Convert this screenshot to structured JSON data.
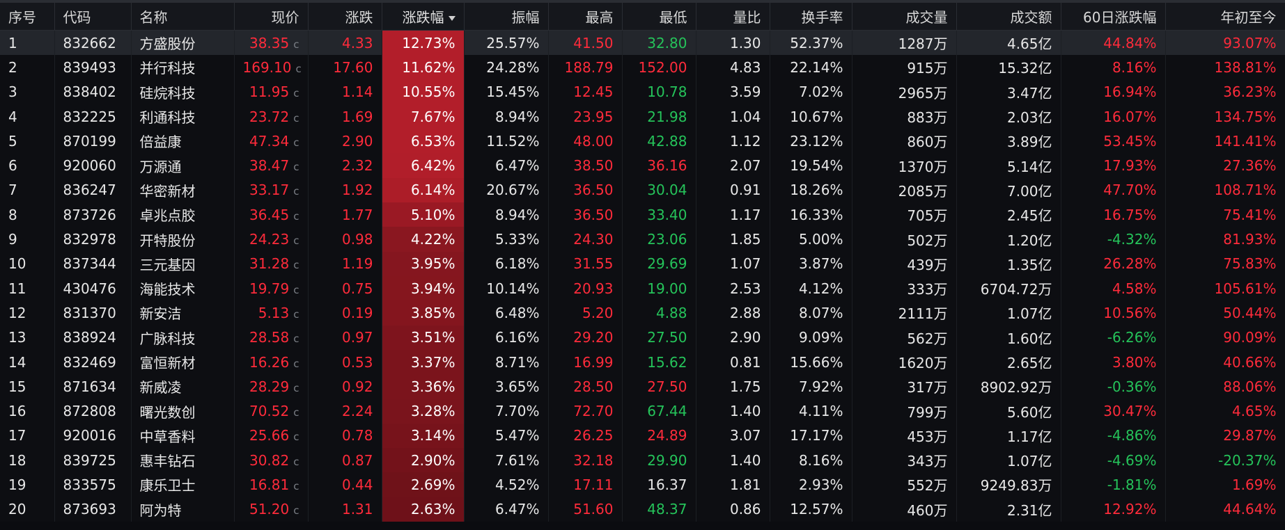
{
  "columns": [
    "序号",
    "代码",
    "名称",
    "现价",
    "涨跌",
    "涨跌幅",
    "振幅",
    "最高",
    "最低",
    "量比",
    "换手率",
    "成交量",
    "成交额",
    "60日涨跌幅",
    "年初至今"
  ],
  "sorted_column": "涨跌幅",
  "price_flag": "c",
  "colors": {
    "up": "#ff2b3b",
    "down": "#25c35a",
    "strong_cell": "#b31e2a",
    "weak_cell": "#6e1219"
  },
  "rows": [
    {
      "idx": "1",
      "code": "832662",
      "name": "方盛股份",
      "price": "38.35",
      "change": "4.33",
      "pct": "12.73%",
      "amp": "25.57%",
      "high": "41.50",
      "low": "32.80",
      "vr": "1.30",
      "turn": "52.37%",
      "vol": "1287万",
      "amt": "4.65亿",
      "d60": "44.84%",
      "ytd": "93.07%",
      "pct_value": 12.73,
      "price_dir": "up",
      "change_dir": "up",
      "high_dir": "up",
      "low_dir": "down",
      "d60_dir": "up",
      "ytd_dir": "up"
    },
    {
      "idx": "2",
      "code": "839493",
      "name": "并行科技",
      "price": "169.10",
      "change": "17.60",
      "pct": "11.62%",
      "amp": "24.28%",
      "high": "188.79",
      "low": "152.00",
      "vr": "4.83",
      "turn": "22.14%",
      "vol": "915万",
      "amt": "15.32亿",
      "d60": "8.16%",
      "ytd": "138.81%",
      "pct_value": 11.62,
      "price_dir": "up",
      "change_dir": "up",
      "high_dir": "up",
      "low_dir": "up",
      "d60_dir": "up",
      "ytd_dir": "up"
    },
    {
      "idx": "3",
      "code": "838402",
      "name": "硅烷科技",
      "price": "11.95",
      "change": "1.14",
      "pct": "10.55%",
      "amp": "15.45%",
      "high": "12.45",
      "low": "10.78",
      "vr": "3.59",
      "turn": "7.02%",
      "vol": "2965万",
      "amt": "3.47亿",
      "d60": "16.94%",
      "ytd": "36.23%",
      "pct_value": 10.55,
      "price_dir": "up",
      "change_dir": "up",
      "high_dir": "up",
      "low_dir": "down",
      "d60_dir": "up",
      "ytd_dir": "up"
    },
    {
      "idx": "4",
      "code": "832225",
      "name": "利通科技",
      "price": "23.72",
      "change": "1.69",
      "pct": "7.67%",
      "amp": "8.94%",
      "high": "23.95",
      "low": "21.98",
      "vr": "1.04",
      "turn": "10.67%",
      "vol": "883万",
      "amt": "2.03亿",
      "d60": "16.07%",
      "ytd": "134.75%",
      "pct_value": 7.67,
      "price_dir": "up",
      "change_dir": "up",
      "high_dir": "up",
      "low_dir": "down",
      "d60_dir": "up",
      "ytd_dir": "up"
    },
    {
      "idx": "5",
      "code": "870199",
      "name": "倍益康",
      "price": "47.34",
      "change": "2.90",
      "pct": "6.53%",
      "amp": "11.52%",
      "high": "48.00",
      "low": "42.88",
      "vr": "1.12",
      "turn": "23.12%",
      "vol": "860万",
      "amt": "3.89亿",
      "d60": "53.45%",
      "ytd": "141.41%",
      "pct_value": 6.53,
      "price_dir": "up",
      "change_dir": "up",
      "high_dir": "up",
      "low_dir": "down",
      "d60_dir": "up",
      "ytd_dir": "up"
    },
    {
      "idx": "6",
      "code": "920060",
      "name": "万源通",
      "price": "38.47",
      "change": "2.32",
      "pct": "6.42%",
      "amp": "6.47%",
      "high": "38.50",
      "low": "36.16",
      "vr": "2.07",
      "turn": "19.54%",
      "vol": "1370万",
      "amt": "5.14亿",
      "d60": "17.93%",
      "ytd": "27.36%",
      "pct_value": 6.42,
      "price_dir": "up",
      "change_dir": "up",
      "high_dir": "up",
      "low_dir": "up",
      "d60_dir": "up",
      "ytd_dir": "up"
    },
    {
      "idx": "7",
      "code": "836247",
      "name": "华密新材",
      "price": "33.17",
      "change": "1.92",
      "pct": "6.14%",
      "amp": "20.67%",
      "high": "36.50",
      "low": "30.04",
      "vr": "0.91",
      "turn": "18.26%",
      "vol": "2085万",
      "amt": "7.00亿",
      "d60": "47.70%",
      "ytd": "108.71%",
      "pct_value": 6.14,
      "price_dir": "up",
      "change_dir": "up",
      "high_dir": "up",
      "low_dir": "down",
      "d60_dir": "up",
      "ytd_dir": "up"
    },
    {
      "idx": "8",
      "code": "873726",
      "name": "卓兆点胶",
      "price": "36.45",
      "change": "1.77",
      "pct": "5.10%",
      "amp": "8.94%",
      "high": "36.50",
      "low": "33.40",
      "vr": "1.17",
      "turn": "16.33%",
      "vol": "705万",
      "amt": "2.45亿",
      "d60": "16.75%",
      "ytd": "75.41%",
      "pct_value": 5.1,
      "price_dir": "up",
      "change_dir": "up",
      "high_dir": "up",
      "low_dir": "down",
      "d60_dir": "up",
      "ytd_dir": "up"
    },
    {
      "idx": "9",
      "code": "832978",
      "name": "开特股份",
      "price": "24.23",
      "change": "0.98",
      "pct": "4.22%",
      "amp": "5.33%",
      "high": "24.30",
      "low": "23.06",
      "vr": "1.85",
      "turn": "5.00%",
      "vol": "502万",
      "amt": "1.20亿",
      "d60": "-4.32%",
      "ytd": "81.93%",
      "pct_value": 4.22,
      "price_dir": "up",
      "change_dir": "up",
      "high_dir": "up",
      "low_dir": "down",
      "d60_dir": "down",
      "ytd_dir": "up"
    },
    {
      "idx": "10",
      "code": "837344",
      "name": "三元基因",
      "price": "31.28",
      "change": "1.19",
      "pct": "3.95%",
      "amp": "6.18%",
      "high": "31.55",
      "low": "29.69",
      "vr": "1.07",
      "turn": "3.87%",
      "vol": "439万",
      "amt": "1.35亿",
      "d60": "26.28%",
      "ytd": "75.83%",
      "pct_value": 3.95,
      "price_dir": "up",
      "change_dir": "up",
      "high_dir": "up",
      "low_dir": "down",
      "d60_dir": "up",
      "ytd_dir": "up"
    },
    {
      "idx": "11",
      "code": "430476",
      "name": "海能技术",
      "price": "19.79",
      "change": "0.75",
      "pct": "3.94%",
      "amp": "10.14%",
      "high": "20.93",
      "low": "19.00",
      "vr": "2.53",
      "turn": "4.12%",
      "vol": "333万",
      "amt": "6704.72万",
      "d60": "4.58%",
      "ytd": "105.61%",
      "pct_value": 3.94,
      "price_dir": "up",
      "change_dir": "up",
      "high_dir": "up",
      "low_dir": "down",
      "d60_dir": "up",
      "ytd_dir": "up"
    },
    {
      "idx": "12",
      "code": "831370",
      "name": "新安洁",
      "price": "5.13",
      "change": "0.19",
      "pct": "3.85%",
      "amp": "6.48%",
      "high": "5.20",
      "low": "4.88",
      "vr": "2.88",
      "turn": "8.07%",
      "vol": "2111万",
      "amt": "1.07亿",
      "d60": "10.56%",
      "ytd": "50.44%",
      "pct_value": 3.85,
      "price_dir": "up",
      "change_dir": "up",
      "high_dir": "up",
      "low_dir": "down",
      "d60_dir": "up",
      "ytd_dir": "up"
    },
    {
      "idx": "13",
      "code": "838924",
      "name": "广脉科技",
      "price": "28.58",
      "change": "0.97",
      "pct": "3.51%",
      "amp": "6.16%",
      "high": "29.20",
      "low": "27.50",
      "vr": "2.90",
      "turn": "9.09%",
      "vol": "562万",
      "amt": "1.60亿",
      "d60": "-6.26%",
      "ytd": "90.09%",
      "pct_value": 3.51,
      "price_dir": "up",
      "change_dir": "up",
      "high_dir": "up",
      "low_dir": "down",
      "d60_dir": "down",
      "ytd_dir": "up"
    },
    {
      "idx": "14",
      "code": "832469",
      "name": "富恒新材",
      "price": "16.26",
      "change": "0.53",
      "pct": "3.37%",
      "amp": "8.71%",
      "high": "16.99",
      "low": "15.62",
      "vr": "0.81",
      "turn": "15.66%",
      "vol": "1620万",
      "amt": "2.65亿",
      "d60": "3.80%",
      "ytd": "40.66%",
      "pct_value": 3.37,
      "price_dir": "up",
      "change_dir": "up",
      "high_dir": "up",
      "low_dir": "down",
      "d60_dir": "up",
      "ytd_dir": "up"
    },
    {
      "idx": "15",
      "code": "871634",
      "name": "新威凌",
      "price": "28.29",
      "change": "0.92",
      "pct": "3.36%",
      "amp": "3.65%",
      "high": "28.50",
      "low": "27.50",
      "vr": "1.75",
      "turn": "7.92%",
      "vol": "317万",
      "amt": "8902.92万",
      "d60": "-0.36%",
      "ytd": "88.06%",
      "pct_value": 3.36,
      "price_dir": "up",
      "change_dir": "up",
      "high_dir": "up",
      "low_dir": "up",
      "d60_dir": "down",
      "ytd_dir": "up"
    },
    {
      "idx": "16",
      "code": "872808",
      "name": "曙光数创",
      "price": "70.52",
      "change": "2.24",
      "pct": "3.28%",
      "amp": "7.70%",
      "high": "72.70",
      "low": "67.44",
      "vr": "1.40",
      "turn": "4.11%",
      "vol": "799万",
      "amt": "5.60亿",
      "d60": "30.47%",
      "ytd": "4.65%",
      "pct_value": 3.28,
      "price_dir": "up",
      "change_dir": "up",
      "high_dir": "up",
      "low_dir": "down",
      "d60_dir": "up",
      "ytd_dir": "up"
    },
    {
      "idx": "17",
      "code": "920016",
      "name": "中草香料",
      "price": "25.66",
      "change": "0.78",
      "pct": "3.14%",
      "amp": "5.47%",
      "high": "26.25",
      "low": "24.89",
      "vr": "3.07",
      "turn": "17.17%",
      "vol": "453万",
      "amt": "1.17亿",
      "d60": "-4.86%",
      "ytd": "29.87%",
      "pct_value": 3.14,
      "price_dir": "up",
      "change_dir": "up",
      "high_dir": "up",
      "low_dir": "up",
      "d60_dir": "down",
      "ytd_dir": "up"
    },
    {
      "idx": "18",
      "code": "839725",
      "name": "惠丰钻石",
      "price": "30.82",
      "change": "0.87",
      "pct": "2.90%",
      "amp": "7.61%",
      "high": "32.18",
      "low": "29.90",
      "vr": "1.40",
      "turn": "8.16%",
      "vol": "343万",
      "amt": "1.07亿",
      "d60": "-4.69%",
      "ytd": "-20.37%",
      "pct_value": 2.9,
      "price_dir": "up",
      "change_dir": "up",
      "high_dir": "up",
      "low_dir": "down",
      "d60_dir": "down",
      "ytd_dir": "down"
    },
    {
      "idx": "19",
      "code": "833575",
      "name": "康乐卫士",
      "price": "16.81",
      "change": "0.44",
      "pct": "2.69%",
      "amp": "4.52%",
      "high": "17.11",
      "low": "16.37",
      "vr": "1.81",
      "turn": "2.93%",
      "vol": "552万",
      "amt": "9249.83万",
      "d60": "-1.81%",
      "ytd": "1.69%",
      "pct_value": 2.69,
      "price_dir": "up",
      "change_dir": "up",
      "high_dir": "up",
      "low_dir": "flat",
      "d60_dir": "down",
      "ytd_dir": "up"
    },
    {
      "idx": "20",
      "code": "873693",
      "name": "阿为特",
      "price": "51.20",
      "change": "1.31",
      "pct": "2.63%",
      "amp": "6.47%",
      "high": "51.60",
      "low": "48.37",
      "vr": "0.86",
      "turn": "12.57%",
      "vol": "460万",
      "amt": "2.31亿",
      "d60": "12.92%",
      "ytd": "44.64%",
      "pct_value": 2.63,
      "price_dir": "up",
      "change_dir": "up",
      "high_dir": "up",
      "low_dir": "down",
      "d60_dir": "up",
      "ytd_dir": "up"
    }
  ]
}
